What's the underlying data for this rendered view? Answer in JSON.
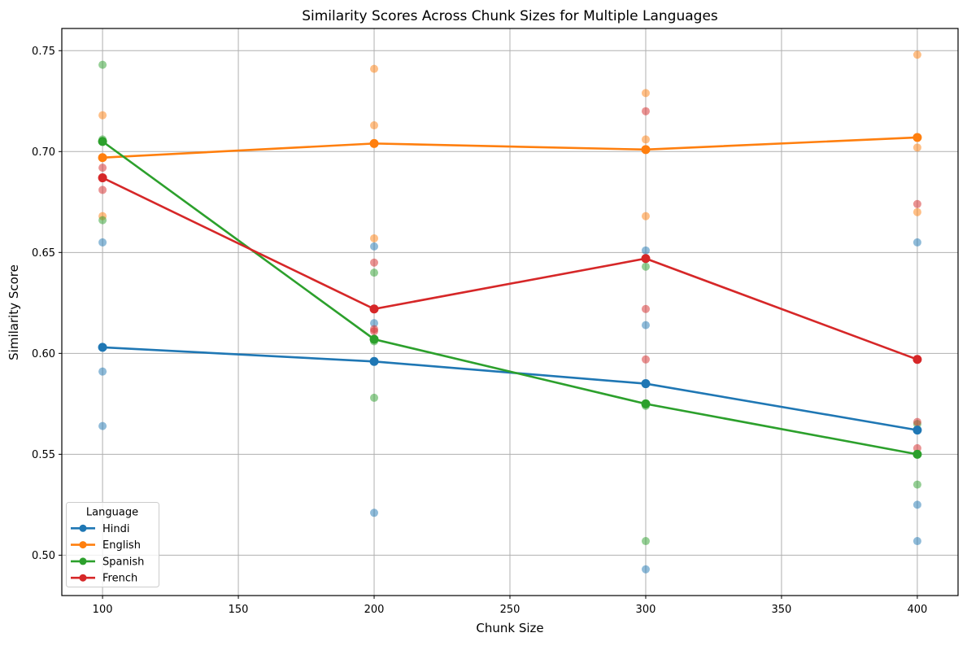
{
  "chart_data": {
    "type": "line",
    "title": "Similarity Scores Across Chunk Sizes for Multiple Languages",
    "xlabel": "Chunk Size",
    "ylabel": "Similarity Score",
    "x": [
      100,
      200,
      300,
      400
    ],
    "xtick_values": [
      100,
      150,
      200,
      250,
      300,
      350,
      400
    ],
    "xtick_labels": [
      "100",
      "150",
      "200",
      "250",
      "300",
      "350",
      "400"
    ],
    "ytick_values": [
      0.5,
      0.55,
      0.6,
      0.65,
      0.7,
      0.75
    ],
    "ytick_labels": [
      "0.50",
      "0.55",
      "0.60",
      "0.65",
      "0.70",
      "0.75"
    ],
    "xlim": [
      85,
      415
    ],
    "ylim": [
      0.48,
      0.761
    ],
    "grid": true,
    "grid_color": "#b0b0b0",
    "background_color": "#ffffff",
    "spine_color": "#000000",
    "legend": {
      "title": "Language",
      "position": "lower left"
    },
    "series": [
      {
        "name": "Hindi",
        "color": "#1f77b4",
        "mean_values": [
          0.603,
          0.596,
          0.585,
          0.562
        ],
        "scatter_values": [
          [
            0.655,
            0.591,
            0.564
          ],
          [
            0.653,
            0.615,
            0.521
          ],
          [
            0.651,
            0.614,
            0.493
          ],
          [
            0.655,
            0.525,
            0.507
          ]
        ]
      },
      {
        "name": "English",
        "color": "#ff7f0e",
        "mean_values": [
          0.697,
          0.704,
          0.701,
          0.707
        ],
        "scatter_values": [
          [
            0.718,
            0.705,
            0.668
          ],
          [
            0.741,
            0.713,
            0.657
          ],
          [
            0.729,
            0.706,
            0.668
          ],
          [
            0.748,
            0.702,
            0.67
          ]
        ]
      },
      {
        "name": "Spanish",
        "color": "#2ca02c",
        "mean_values": [
          0.705,
          0.607,
          0.575,
          0.55
        ],
        "scatter_values": [
          [
            0.743,
            0.706,
            0.666
          ],
          [
            0.64,
            0.606,
            0.578
          ],
          [
            0.643,
            0.574,
            0.507
          ],
          [
            0.565,
            0.55,
            0.535
          ]
        ]
      },
      {
        "name": "French",
        "color": "#d62728",
        "mean_values": [
          0.687,
          0.622,
          0.647,
          0.597
        ],
        "scatter_values": [
          [
            0.692,
            0.687,
            0.681
          ],
          [
            0.645,
            0.612,
            0.611
          ],
          [
            0.72,
            0.622,
            0.597
          ],
          [
            0.674,
            0.566,
            0.553
          ]
        ]
      }
    ]
  }
}
